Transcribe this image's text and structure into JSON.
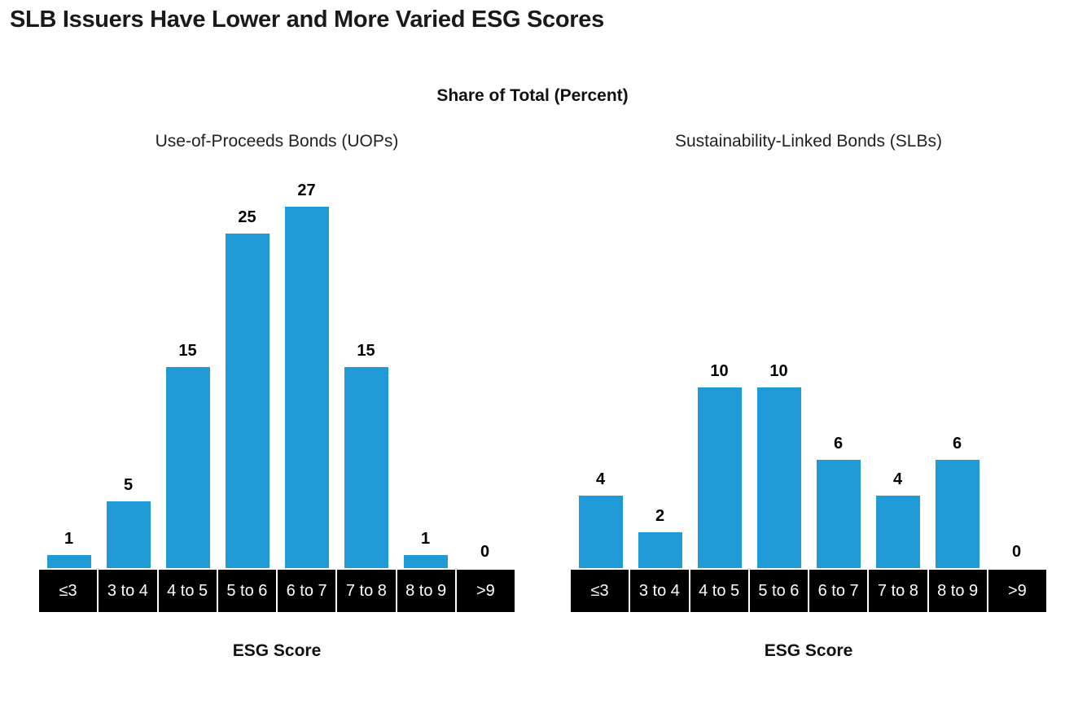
{
  "title": "SLB Issuers Have Lower and More Varied ESG Scores",
  "subtitle": "Share of Total (Percent)",
  "colors": {
    "bar": "#1f9ad6",
    "axis_band": "#000000"
  },
  "chart_data": [
    {
      "type": "bar",
      "title": "Use-of-Proceeds Bonds (UOPs)",
      "xlabel": "ESG Score",
      "ylabel": "",
      "categories": [
        "≤3",
        "3 to 4",
        "4 to 5",
        "5 to 6",
        "6 to 7",
        "7 to 8",
        "8 to 9",
        ">9"
      ],
      "values": [
        1,
        5,
        15,
        25,
        27,
        15,
        1,
        0
      ],
      "ylim": [
        0,
        27
      ],
      "grid": false
    },
    {
      "type": "bar",
      "title": "Sustainability-Linked Bonds (SLBs)",
      "xlabel": "ESG Score",
      "ylabel": "",
      "categories": [
        "≤3",
        "3 to 4",
        "4 to 5",
        "5 to 6",
        "6 to 7",
        "7 to 8",
        "8 to 9",
        ">9"
      ],
      "values": [
        4,
        2,
        10,
        10,
        6,
        4,
        6,
        0
      ],
      "ylim": [
        0,
        20
      ],
      "grid": false
    }
  ]
}
